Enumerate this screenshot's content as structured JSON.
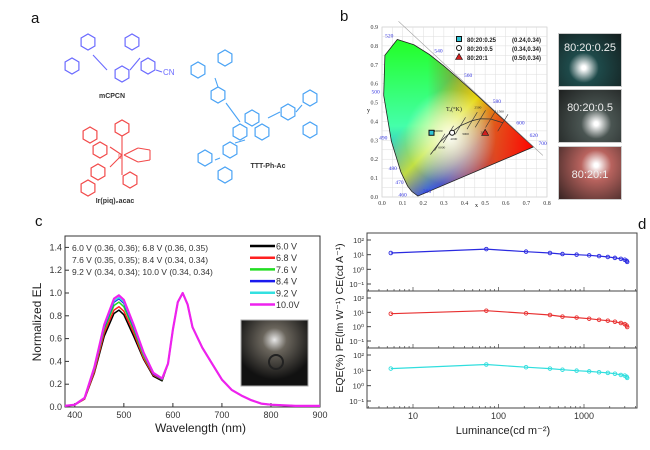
{
  "panels": {
    "a": "a",
    "b": "b",
    "c": "c",
    "d": "d"
  },
  "molecules": [
    {
      "name": "mCPCN",
      "color": "#6b6bff",
      "extra": "CN"
    },
    {
      "name": "Ir(piq)₂acac",
      "color": "#f24a4a",
      "extra": "Ir"
    },
    {
      "name": "TTT-Ph-Ac",
      "color": "#4aa3f5"
    }
  ],
  "cie": {
    "xlabel": "x",
    "ylabel": "y",
    "xticks": [
      "0.0",
      "0.1",
      "0.2",
      "0.3",
      "0.4",
      "0.5",
      "0.6",
      "0.7",
      "0.8"
    ],
    "yticks": [
      "0.0",
      "0.1",
      "0.2",
      "0.3",
      "0.4",
      "0.5",
      "0.6",
      "0.7",
      "0.8",
      "0.9"
    ],
    "wavelength_labels": [
      {
        "t": "520",
        "x": 0.0743,
        "y": 0.8338
      },
      {
        "t": "540",
        "x": 0.2296,
        "y": 0.7543
      },
      {
        "t": "560",
        "x": 0.3731,
        "y": 0.6245
      },
      {
        "t": "580",
        "x": 0.5125,
        "y": 0.4866
      },
      {
        "t": "600",
        "x": 0.627,
        "y": 0.3725
      },
      {
        "t": "620",
        "x": 0.6915,
        "y": 0.3083
      },
      {
        "t": "700",
        "x": 0.7347,
        "y": 0.2653
      },
      {
        "t": "500",
        "x": 0.0082,
        "y": 0.5384
      },
      {
        "t": "490",
        "x": 0.0454,
        "y": 0.295
      },
      {
        "t": "480",
        "x": 0.0913,
        "y": 0.1327
      },
      {
        "t": "470",
        "x": 0.1241,
        "y": 0.0578
      },
      {
        "t": "460",
        "x": 0.144,
        "y": 0.0297
      },
      {
        "t": "380",
        "x": 0.1741,
        "y": 0.005
      }
    ],
    "planck_label": "Tₑ(°K)",
    "temps": [
      {
        "t": "10000",
        "x": 0.28,
        "y": 0.29
      },
      {
        "t": "6000",
        "x": 0.322,
        "y": 0.332
      },
      {
        "t": "4000",
        "x": 0.38,
        "y": 0.377
      },
      {
        "t": "3000",
        "x": 0.437,
        "y": 0.404
      },
      {
        "t": "2500",
        "x": 0.477,
        "y": 0.414
      },
      {
        "t": "2000",
        "x": 0.527,
        "y": 0.413
      },
      {
        "t": "1500",
        "x": 0.586,
        "y": 0.393
      }
    ],
    "legend": [
      {
        "label": "80:20:0.25",
        "coord": "(0.24,0.34)",
        "marker": "square",
        "color": "#2fc4d4",
        "x": 0.24,
        "y": 0.34
      },
      {
        "label": "80:20:0.5",
        "coord": "(0.34,0.34)",
        "marker": "circle",
        "color": "#ffffff",
        "x": 0.34,
        "y": 0.34
      },
      {
        "label": "80:20:1",
        "coord": "(0.50,0.34)",
        "marker": "triangle",
        "color": "#d21e1e",
        "x": 0.5,
        "y": 0.34
      }
    ],
    "photos": [
      {
        "label": "80:20:0.25",
        "color": "#1e4a4a"
      },
      {
        "label": "80:20:0.5",
        "color": "#4a5552"
      },
      {
        "label": "80:20:1",
        "color": "#b8635e"
      }
    ]
  },
  "chart_data": [
    {
      "type": "line",
      "panel": "c",
      "xlabel": "Wavelength (nm)",
      "ylabel": "Normalized EL",
      "xlim": [
        380,
        900
      ],
      "ylim": [
        0,
        1.5
      ],
      "xticks": [
        400,
        500,
        600,
        700,
        800,
        900
      ],
      "yticks": [
        "0.0",
        "0.2",
        "0.4",
        "0.6",
        "0.8",
        "1.0",
        "1.2",
        "1.4"
      ],
      "x": [
        380,
        400,
        420,
        440,
        460,
        480,
        490,
        500,
        520,
        540,
        560,
        578,
        590,
        600,
        610,
        620,
        630,
        640,
        660,
        680,
        700,
        720,
        740,
        760,
        780,
        800,
        850,
        900
      ],
      "series": [
        {
          "name": "6.0  V",
          "color": "#000000",
          "y": [
            0.01,
            0.02,
            0.07,
            0.3,
            0.62,
            0.82,
            0.85,
            0.81,
            0.62,
            0.42,
            0.27,
            0.23,
            0.38,
            0.68,
            0.92,
            1.0,
            0.9,
            0.7,
            0.52,
            0.38,
            0.24,
            0.15,
            0.1,
            0.06,
            0.03,
            0.02,
            0.01,
            0.01
          ]
        },
        {
          "name": "6.8  V",
          "color": "#ff2020",
          "y": [
            0.01,
            0.02,
            0.07,
            0.31,
            0.65,
            0.85,
            0.88,
            0.84,
            0.65,
            0.43,
            0.28,
            0.24,
            0.38,
            0.68,
            0.92,
            1.0,
            0.9,
            0.7,
            0.52,
            0.38,
            0.24,
            0.15,
            0.1,
            0.06,
            0.03,
            0.02,
            0.01,
            0.01
          ]
        },
        {
          "name": "7.6  V",
          "color": "#22dd22",
          "y": [
            0.01,
            0.02,
            0.075,
            0.33,
            0.68,
            0.89,
            0.92,
            0.88,
            0.68,
            0.45,
            0.29,
            0.24,
            0.38,
            0.68,
            0.92,
            1.0,
            0.9,
            0.7,
            0.52,
            0.38,
            0.24,
            0.15,
            0.1,
            0.06,
            0.03,
            0.02,
            0.01,
            0.01
          ]
        },
        {
          "name": "8.4  V",
          "color": "#1a1aee",
          "y": [
            0.01,
            0.02,
            0.08,
            0.34,
            0.7,
            0.92,
            0.95,
            0.91,
            0.7,
            0.47,
            0.29,
            0.245,
            0.38,
            0.68,
            0.92,
            1.0,
            0.9,
            0.7,
            0.52,
            0.38,
            0.24,
            0.15,
            0.1,
            0.06,
            0.03,
            0.02,
            0.01,
            0.01
          ]
        },
        {
          "name": "9.2  V",
          "color": "#33e0e0",
          "y": [
            0.01,
            0.02,
            0.08,
            0.34,
            0.71,
            0.93,
            0.96,
            0.92,
            0.71,
            0.47,
            0.3,
            0.25,
            0.38,
            0.68,
            0.92,
            1.0,
            0.9,
            0.7,
            0.52,
            0.38,
            0.24,
            0.15,
            0.1,
            0.06,
            0.03,
            0.02,
            0.01,
            0.01
          ]
        },
        {
          "name": "10.0V",
          "color": "#ee22ee",
          "y": [
            0.01,
            0.02,
            0.08,
            0.35,
            0.72,
            0.95,
            0.98,
            0.94,
            0.72,
            0.48,
            0.3,
            0.25,
            0.38,
            0.68,
            0.92,
            1.0,
            0.9,
            0.7,
            0.52,
            0.38,
            0.24,
            0.15,
            0.1,
            0.06,
            0.03,
            0.02,
            0.01,
            0.01
          ]
        }
      ],
      "annotations": [
        "6.0 V (0.36, 0.36); 6.8 V   (0.36, 0.35)",
        "7.6 V (0.35, 0.35); 8.4 V   (0.34, 0.34)",
        "9.2 V (0.34, 0.34); 10.0 V (0.34, 0.34)"
      ]
    },
    {
      "type": "line",
      "panel": "d",
      "xscale": "log",
      "yscale": "log",
      "xlabel": "Luminance(cd m⁻²)",
      "ylabel": "EQE(%) PE(lm W⁻¹) CE(cd A⁻¹)",
      "xticks": [
        "10",
        "100",
        "1000"
      ],
      "yticks": [
        "10⁻¹",
        "10⁰",
        "10¹",
        "10²"
      ],
      "ylim": [
        0.1,
        100
      ],
      "x": [
        5.5,
        72,
        210,
        400,
        560,
        820,
        1150,
        1500,
        1900,
        2300,
        2700,
        3000,
        3150,
        3200
      ],
      "series": [
        {
          "name": "CE",
          "color": "#2a2ae0",
          "y": [
            13,
            24,
            16,
            13,
            11,
            10,
            9,
            8,
            7,
            6,
            5.2,
            4.5,
            3.8,
            3.2
          ]
        },
        {
          "name": "PE",
          "color": "#e83030",
          "y": [
            8,
            13,
            8.5,
            6.5,
            5,
            4.3,
            3.6,
            3,
            2.6,
            2.2,
            1.8,
            1.5,
            1.2,
            0.95
          ]
        },
        {
          "name": "EQE",
          "color": "#30dede",
          "y": [
            13,
            24,
            16,
            13,
            11,
            9.5,
            8.5,
            7.5,
            6.8,
            6,
            5,
            4.5,
            3.8,
            3.2
          ]
        }
      ]
    }
  ]
}
